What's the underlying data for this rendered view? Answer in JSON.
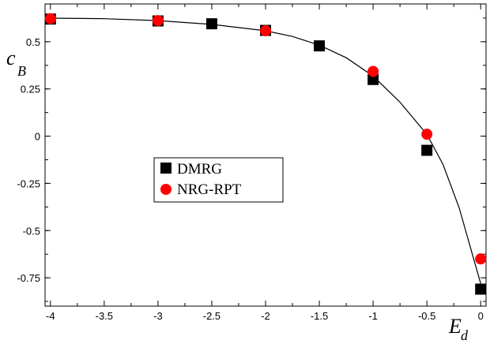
{
  "chart_data": {
    "type": "scatter",
    "xlabel": "E",
    "xlabel_sub": "d",
    "ylabel": "c",
    "ylabel_sub": "B",
    "xlim": [
      -4.05,
      0.05
    ],
    "ylim": [
      -0.9,
      0.7
    ],
    "x_ticks": [
      -4,
      -3.5,
      -3,
      -2.5,
      -2,
      -1.5,
      -1,
      -0.5,
      0
    ],
    "x_tick_labels": [
      "-4",
      "-3.5",
      "-3",
      "-2.5",
      "-2",
      "-1.5",
      "-1",
      "-0.5",
      "0"
    ],
    "y_ticks": [
      -0.75,
      -0.5,
      -0.25,
      0,
      0.25,
      0.5
    ],
    "y_tick_labels": [
      "-0.75",
      "-0.5",
      "-0.25",
      "0",
      "0.25",
      "0.5"
    ],
    "grid": false,
    "legend_position": "middle-left",
    "series": [
      {
        "name": "DMRG",
        "marker": "square",
        "color": "#000000",
        "x": [
          -4,
          -3,
          -2.5,
          -2,
          -1.5,
          -1,
          -0.5,
          0
        ],
        "y": [
          0.62,
          0.61,
          0.595,
          0.56,
          0.478,
          0.3,
          -0.075,
          -0.81
        ]
      },
      {
        "name": "NRG-RPT",
        "marker": "circle",
        "color": "#ff0000",
        "x": [
          -4,
          -3,
          -2,
          -1,
          -0.5,
          0
        ],
        "y": [
          0.622,
          0.612,
          0.558,
          0.343,
          0.01,
          -0.65
        ]
      }
    ],
    "fit_line": {
      "color": "#000000",
      "x": [
        -4,
        -3.5,
        -3,
        -2.5,
        -2,
        -1.75,
        -1.5,
        -1.25,
        -1,
        -0.75,
        -0.5,
        -0.35,
        -0.2,
        -0.1,
        0
      ],
      "y": [
        0.625,
        0.622,
        0.612,
        0.592,
        0.558,
        0.528,
        0.482,
        0.415,
        0.318,
        0.18,
        0.01,
        -0.15,
        -0.38,
        -0.58,
        -0.78
      ]
    }
  }
}
